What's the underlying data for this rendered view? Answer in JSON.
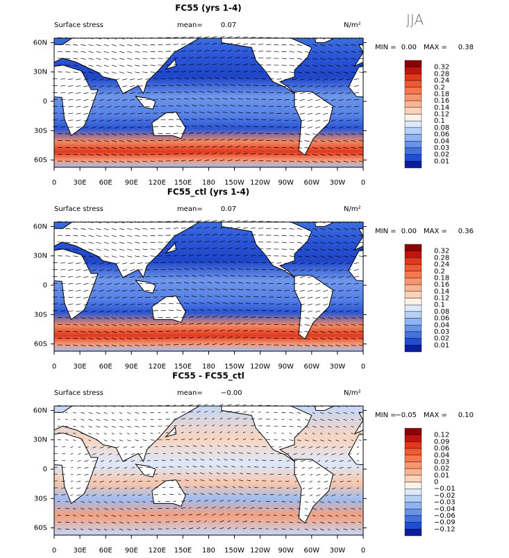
{
  "season": "JJA",
  "lon_ticks": [
    "0",
    "30E",
    "60E",
    "90E",
    "120E",
    "150E",
    "180",
    "150W",
    "120W",
    "90W",
    "60W",
    "30W",
    "0"
  ],
  "lat_ticks": [
    "60N",
    "30N",
    "0",
    "30S",
    "60S"
  ],
  "colorbar_colors": [
    "#8b0000",
    "#c0140f",
    "#e2391c",
    "#f05a32",
    "#f5784f",
    "#f8966f",
    "#fab493",
    "#fcd2b9",
    "#fdf0e4",
    "#dce8fb",
    "#b6cff7",
    "#8fb3f0",
    "#6894e8",
    "#4272dd",
    "#1f4fd0",
    "#0a1fa0"
  ],
  "panels": [
    {
      "title": "FC55 (yrs 1-4)",
      "variable": "Surface stress",
      "mean_label": "mean=",
      "mean": "0.07",
      "units": "N/m²",
      "min_label": "MIN =",
      "min": "0.00",
      "max_label": "MAX =",
      "max": "0.38",
      "levels": [
        "0.32",
        "0.28",
        "0.24",
        "0.2",
        "0.18",
        "0.16",
        "0.14",
        "0.12",
        "0.1",
        "0.08",
        "0.06",
        "0.04",
        "0.03",
        "0.02",
        "0.01"
      ]
    },
    {
      "title": "FC55_ctl (yrs 1-4)",
      "variable": "Surface stress",
      "mean_label": "mean=",
      "mean": "0.07",
      "units": "N/m²",
      "min_label": "MIN =",
      "min": "0.00",
      "max_label": "MAX =",
      "max": "0.36",
      "levels": [
        "0.32",
        "0.28",
        "0.24",
        "0.2",
        "0.18",
        "0.16",
        "0.14",
        "0.12",
        "0.1",
        "0.08",
        "0.06",
        "0.04",
        "0.03",
        "0.02",
        "0.01"
      ]
    },
    {
      "title": "FC55 - FC55_ctl",
      "variable": "Surface stress",
      "mean_label": "mean=",
      "mean": "−0.00",
      "units": "N/m²",
      "min_label": "MIN =",
      "min": "−0.05",
      "max_label": "MAX =",
      "max": "0.10",
      "levels": [
        "0.12",
        "0.09",
        "0.06",
        "0.04",
        "0.03",
        "0.02",
        "0.01",
        "0",
        "−0.01",
        "−0.02",
        "−0.03",
        "−0.04",
        "−0.06",
        "−0.09",
        "−0.12"
      ]
    }
  ]
}
